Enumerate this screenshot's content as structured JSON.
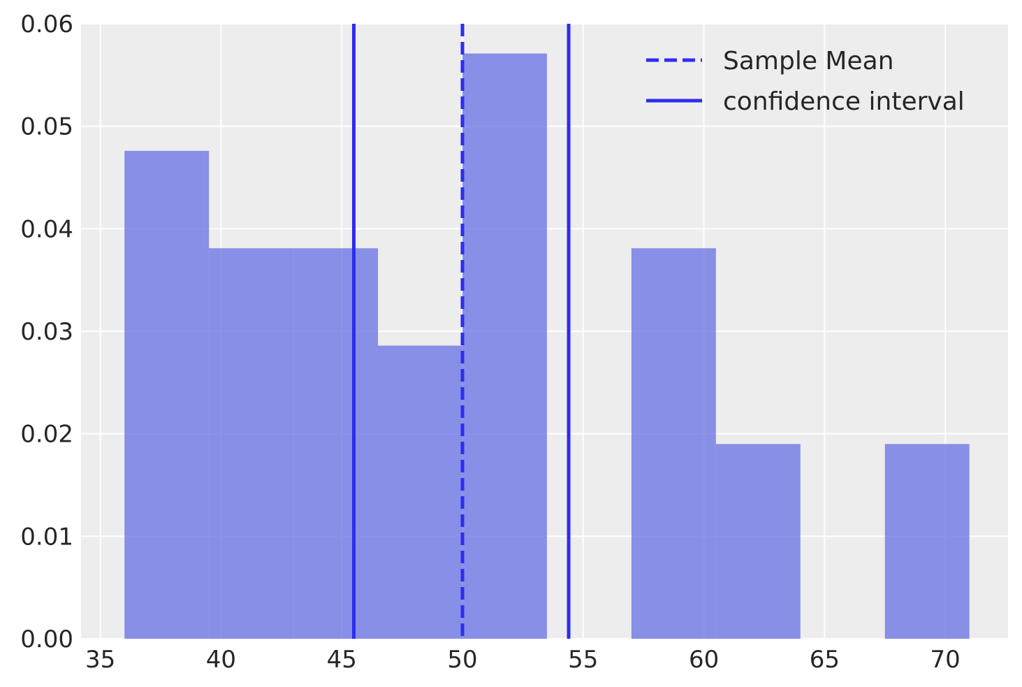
{
  "chart_data": {
    "type": "bar",
    "subtype": "histogram",
    "bins": [
      {
        "x0": 36.0,
        "x1": 39.5,
        "density": 0.0476
      },
      {
        "x0": 39.5,
        "x1": 43.0,
        "density": 0.0381
      },
      {
        "x0": 43.0,
        "x1": 46.5,
        "density": 0.0381
      },
      {
        "x0": 46.5,
        "x1": 50.0,
        "density": 0.0286
      },
      {
        "x0": 50.0,
        "x1": 53.5,
        "density": 0.0571
      },
      {
        "x0": 53.5,
        "x1": 57.0,
        "density": 0.0
      },
      {
        "x0": 57.0,
        "x1": 60.5,
        "density": 0.0381
      },
      {
        "x0": 60.5,
        "x1": 64.0,
        "density": 0.019
      },
      {
        "x0": 64.0,
        "x1": 67.5,
        "density": 0.0
      },
      {
        "x0": 67.5,
        "x1": 71.0,
        "density": 0.019
      }
    ],
    "bar_color": "#6c74e6",
    "bar_opacity": 0.78,
    "vlines": [
      {
        "name": "Sample Mean",
        "x": 50.0,
        "style": "dashed",
        "color": "#2d2df0"
      },
      {
        "name": "confidence interval",
        "x": 45.5,
        "style": "solid",
        "color": "#2d2df0"
      },
      {
        "name": "confidence interval",
        "x": 54.4,
        "style": "solid",
        "color": "#2d2df0"
      }
    ],
    "xlim": [
      34.2,
      72.6
    ],
    "ylim": [
      0,
      0.06
    ],
    "xticks": [
      35,
      40,
      45,
      50,
      55,
      60,
      65,
      70
    ],
    "yticks": [
      0.0,
      0.01,
      0.02,
      0.03,
      0.04,
      0.05,
      0.06
    ],
    "xtick_labels": [
      "35",
      "40",
      "45",
      "50",
      "55",
      "60",
      "65",
      "70"
    ],
    "ytick_labels": [
      "0.00",
      "0.01",
      "0.02",
      "0.03",
      "0.04",
      "0.05",
      "0.06"
    ],
    "grid": true,
    "background": "#ededed",
    "legend": {
      "position": "top-right",
      "entries": [
        {
          "label": "Sample Mean",
          "style": "dashed"
        },
        {
          "label": "confidence interval",
          "style": "solid"
        }
      ]
    }
  }
}
